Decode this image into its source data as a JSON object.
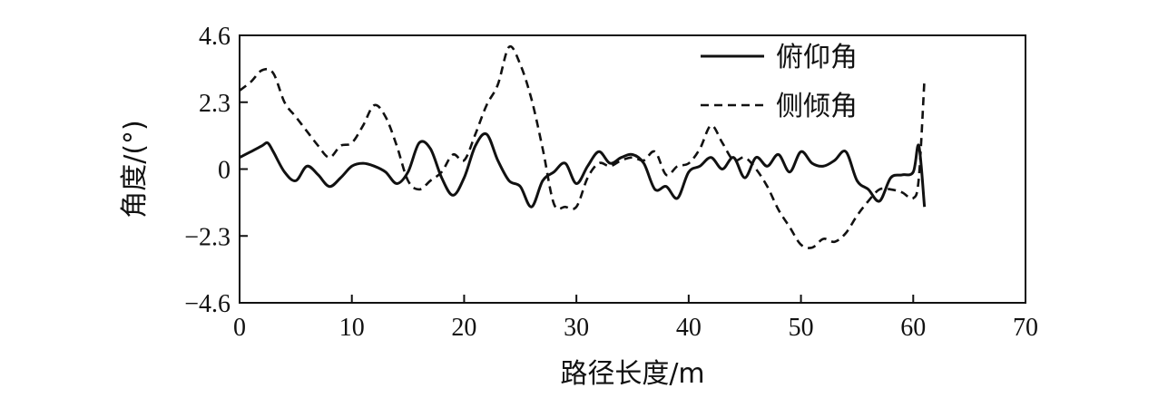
{
  "chart_data": {
    "type": "line",
    "xlabel": "路径长度/m",
    "ylabel": "角度/(°)",
    "xlim": [
      0,
      70
    ],
    "ylim": [
      -4.6,
      4.6
    ],
    "xticks": [
      0,
      10,
      20,
      30,
      40,
      50,
      60,
      70
    ],
    "yticks": [
      -4.6,
      -2.3,
      0,
      2.3,
      4.6
    ],
    "xtick_labels": [
      "0",
      "10",
      "20",
      "30",
      "40",
      "50",
      "60",
      "70"
    ],
    "ytick_labels": [
      "−4.6",
      "−2.3",
      "0",
      "2.3",
      "4.6"
    ],
    "grid": false,
    "legend_position": "top-right",
    "series": [
      {
        "name": "俯仰角",
        "style": "solid",
        "x": [
          0,
          1,
          2,
          2.5,
          3,
          4,
          5,
          6,
          7,
          8,
          9,
          10,
          11,
          12,
          13,
          14,
          15,
          16,
          17,
          18,
          19,
          20,
          21,
          22,
          23,
          24,
          25,
          26,
          27,
          28,
          29,
          30,
          31,
          32,
          33,
          34,
          35,
          36,
          37,
          38,
          39,
          40,
          41,
          42,
          43,
          44,
          45,
          46,
          47,
          48,
          49,
          50,
          51,
          52,
          53,
          54,
          55,
          56,
          57,
          58,
          59,
          60,
          60.5,
          61
        ],
        "y": [
          0.4,
          0.6,
          0.8,
          0.9,
          0.6,
          -0.1,
          -0.4,
          0.1,
          -0.2,
          -0.6,
          -0.3,
          0.1,
          0.2,
          0.1,
          -0.1,
          -0.5,
          -0.1,
          0.9,
          0.7,
          -0.3,
          -0.9,
          -0.3,
          0.8,
          1.2,
          0.3,
          -0.4,
          -0.6,
          -1.3,
          -0.4,
          -0.1,
          0.2,
          -0.5,
          0.1,
          0.6,
          0.2,
          0.4,
          0.5,
          0.2,
          -0.7,
          -0.6,
          -1.0,
          -0.1,
          0.1,
          0.4,
          0.0,
          0.4,
          -0.3,
          0.4,
          0.1,
          0.5,
          -0.1,
          0.6,
          0.2,
          0.1,
          0.3,
          0.6,
          -0.4,
          -0.7,
          -1.1,
          -0.3,
          -0.2,
          -0.1,
          0.8,
          -1.3
        ]
      },
      {
        "name": "侧倾角",
        "style": "dashed",
        "x": [
          0,
          1,
          2,
          3,
          4,
          5,
          6,
          7,
          8,
          9,
          10,
          11,
          12,
          13,
          14,
          15,
          16,
          17,
          18,
          19,
          20,
          21,
          22,
          23,
          24,
          25,
          26,
          27,
          28,
          29,
          30,
          31,
          32,
          33,
          34,
          35,
          36,
          37,
          38,
          39,
          40,
          41,
          42,
          43,
          44,
          45,
          46,
          47,
          48,
          49,
          50,
          51,
          52,
          53,
          54,
          55,
          56,
          57,
          58,
          59,
          60,
          60.5,
          61
        ],
        "y": [
          2.7,
          3.0,
          3.4,
          3.3,
          2.3,
          1.8,
          1.3,
          0.8,
          0.4,
          0.8,
          0.9,
          1.5,
          2.2,
          1.8,
          0.8,
          -0.4,
          -0.7,
          -0.4,
          -0.1,
          0.5,
          0.3,
          1.2,
          2.2,
          2.9,
          4.2,
          3.6,
          2.4,
          0.7,
          -1.2,
          -1.3,
          -1.3,
          -0.3,
          0.2,
          0.1,
          0.3,
          0.4,
          0.3,
          0.6,
          -0.2,
          0.1,
          0.2,
          0.7,
          1.5,
          0.9,
          0.3,
          0.4,
          0.0,
          -0.6,
          -1.4,
          -2.0,
          -2.6,
          -2.7,
          -2.4,
          -2.5,
          -2.2,
          -1.6,
          -1.1,
          -0.7,
          -0.7,
          -0.8,
          -1.0,
          -0.3,
          3.1
        ]
      }
    ]
  }
}
